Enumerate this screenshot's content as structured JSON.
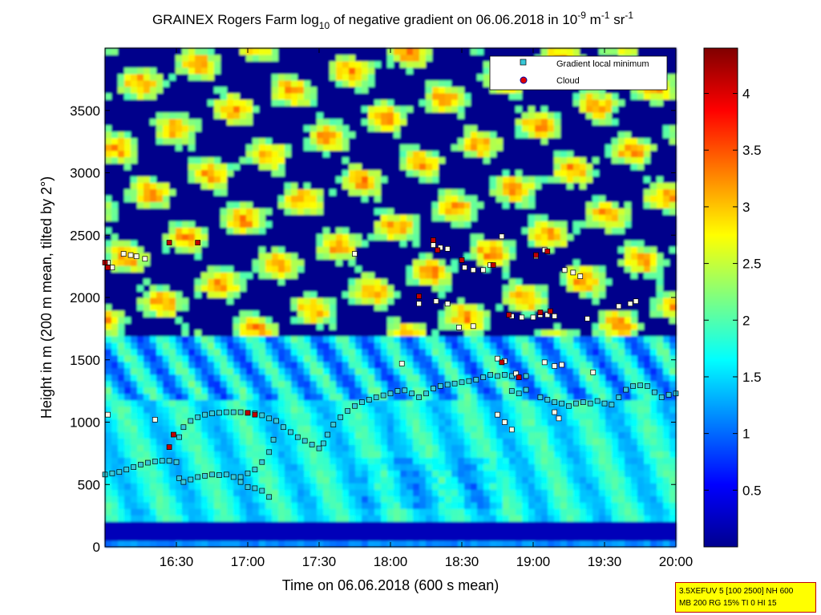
{
  "chart_data": {
    "type": "heatmap",
    "title": {
      "part1": "GRAINEX Rogers Farm log",
      "sub": "10",
      "part2": " of negative gradient on 06.06.2018 in 10",
      "sup1": "-9",
      "part3": " m",
      "sup2": "-1",
      "part4": " sr",
      "sup3": "-1"
    },
    "xlabel": "Time on 06.06.2018 (600 s mean)",
    "ylabel": "Height in m (200 m mean, tilted by 2°)",
    "x_range_hours": [
      16.0,
      20.0
    ],
    "x_ticks": [
      {
        "value": 16.5,
        "label": "16:30"
      },
      {
        "value": 17.0,
        "label": "17:00"
      },
      {
        "value": 17.5,
        "label": "17:30"
      },
      {
        "value": 18.0,
        "label": "18:00"
      },
      {
        "value": 18.5,
        "label": "18:30"
      },
      {
        "value": 19.0,
        "label": "19:00"
      },
      {
        "value": 19.5,
        "label": "19:30"
      },
      {
        "value": 20.0,
        "label": "20:00"
      }
    ],
    "y_range": [
      0,
      4000
    ],
    "y_ticks": [
      {
        "value": 0,
        "label": "0"
      },
      {
        "value": 500,
        "label": "500"
      },
      {
        "value": 1000,
        "label": "1000"
      },
      {
        "value": 1500,
        "label": "1500"
      },
      {
        "value": 2000,
        "label": "2000"
      },
      {
        "value": 2500,
        "label": "2500"
      },
      {
        "value": 3000,
        "label": "3000"
      },
      {
        "value": 3500,
        "label": "3500"
      }
    ],
    "colorbar": {
      "range": [
        0,
        4.4
      ],
      "colormap": "jet",
      "ticks": [
        {
          "value": 0.5,
          "label": "0.5"
        },
        {
          "value": 1,
          "label": "1"
        },
        {
          "value": 1.5,
          "label": "1.5"
        },
        {
          "value": 2,
          "label": "2"
        },
        {
          "value": 2.5,
          "label": "2.5"
        },
        {
          "value": 3,
          "label": "3"
        },
        {
          "value": 3.5,
          "label": "3.5"
        },
        {
          "value": 4,
          "label": "4"
        }
      ]
    },
    "legend": {
      "placement": "top-right",
      "entries": [
        {
          "label": "Gradient local minimum",
          "marker": "square",
          "color": "#38c8d8"
        },
        {
          "label": "Cloud",
          "marker": "circle",
          "color": "#e00000"
        }
      ]
    },
    "boundary_layer_markers": [
      {
        "t": 16.0,
        "h": 580
      },
      {
        "t": 16.05,
        "h": 590
      },
      {
        "t": 16.1,
        "h": 600
      },
      {
        "t": 16.15,
        "h": 620
      },
      {
        "t": 16.2,
        "h": 640
      },
      {
        "t": 16.25,
        "h": 660
      },
      {
        "t": 16.3,
        "h": 675
      },
      {
        "t": 16.35,
        "h": 685
      },
      {
        "t": 16.4,
        "h": 690
      },
      {
        "t": 16.45,
        "h": 690
      },
      {
        "t": 16.5,
        "h": 680
      },
      {
        "t": 16.52,
        "h": 550
      },
      {
        "t": 16.55,
        "h": 520
      },
      {
        "t": 16.6,
        "h": 540
      },
      {
        "t": 16.65,
        "h": 560
      },
      {
        "t": 16.7,
        "h": 570
      },
      {
        "t": 16.75,
        "h": 580
      },
      {
        "t": 16.8,
        "h": 575
      },
      {
        "t": 16.85,
        "h": 580
      },
      {
        "t": 16.9,
        "h": 560
      },
      {
        "t": 16.95,
        "h": 520
      },
      {
        "t": 17.0,
        "h": 480
      },
      {
        "t": 17.05,
        "h": 470
      },
      {
        "t": 17.1,
        "h": 450
      },
      {
        "t": 17.15,
        "h": 400
      },
      {
        "t": 16.95,
        "h": 560
      },
      {
        "t": 17.0,
        "h": 590
      },
      {
        "t": 17.05,
        "h": 620
      },
      {
        "t": 17.1,
        "h": 680
      },
      {
        "t": 17.15,
        "h": 760
      },
      {
        "t": 17.18,
        "h": 860
      },
      {
        "t": 16.52,
        "h": 880
      },
      {
        "t": 16.55,
        "h": 960
      },
      {
        "t": 16.6,
        "h": 1010
      },
      {
        "t": 16.65,
        "h": 1040
      },
      {
        "t": 16.7,
        "h": 1060
      },
      {
        "t": 16.75,
        "h": 1070
      },
      {
        "t": 16.8,
        "h": 1075
      },
      {
        "t": 16.85,
        "h": 1080
      },
      {
        "t": 16.9,
        "h": 1080
      },
      {
        "t": 16.95,
        "h": 1080
      },
      {
        "t": 17.0,
        "h": 1075
      },
      {
        "t": 17.05,
        "h": 1070
      },
      {
        "t": 17.1,
        "h": 1055
      },
      {
        "t": 17.15,
        "h": 1030
      },
      {
        "t": 17.2,
        "h": 1010
      },
      {
        "t": 17.25,
        "h": 960
      },
      {
        "t": 17.3,
        "h": 920
      },
      {
        "t": 17.35,
        "h": 880
      },
      {
        "t": 17.4,
        "h": 850
      },
      {
        "t": 17.45,
        "h": 820
      },
      {
        "t": 17.5,
        "h": 790
      },
      {
        "t": 17.53,
        "h": 830
      },
      {
        "t": 17.56,
        "h": 900
      },
      {
        "t": 17.6,
        "h": 980
      },
      {
        "t": 17.65,
        "h": 1040
      },
      {
        "t": 17.7,
        "h": 1090
      },
      {
        "t": 17.75,
        "h": 1130
      },
      {
        "t": 17.8,
        "h": 1160
      },
      {
        "t": 17.85,
        "h": 1180
      },
      {
        "t": 17.9,
        "h": 1200
      },
      {
        "t": 17.95,
        "h": 1215
      },
      {
        "t": 18.0,
        "h": 1230
      },
      {
        "t": 18.05,
        "h": 1250
      },
      {
        "t": 18.1,
        "h": 1255
      },
      {
        "t": 18.15,
        "h": 1230
      },
      {
        "t": 18.2,
        "h": 1200
      },
      {
        "t": 18.25,
        "h": 1230
      },
      {
        "t": 18.3,
        "h": 1270
      },
      {
        "t": 18.35,
        "h": 1290
      },
      {
        "t": 18.4,
        "h": 1300
      },
      {
        "t": 18.45,
        "h": 1310
      },
      {
        "t": 18.5,
        "h": 1320
      },
      {
        "t": 18.55,
        "h": 1330
      },
      {
        "t": 18.6,
        "h": 1340
      },
      {
        "t": 18.65,
        "h": 1360
      },
      {
        "t": 18.7,
        "h": 1380
      },
      {
        "t": 18.75,
        "h": 1370
      },
      {
        "t": 18.8,
        "h": 1380
      },
      {
        "t": 18.85,
        "h": 1370
      },
      {
        "t": 18.9,
        "h": 1360
      },
      {
        "t": 18.95,
        "h": 1370
      },
      {
        "t": 18.85,
        "h": 1250
      },
      {
        "t": 18.9,
        "h": 1230
      },
      {
        "t": 18.95,
        "h": 1260
      },
      {
        "t": 19.05,
        "h": 1200
      },
      {
        "t": 19.1,
        "h": 1180
      },
      {
        "t": 19.15,
        "h": 1160
      },
      {
        "t": 19.2,
        "h": 1150
      },
      {
        "t": 19.25,
        "h": 1130
      },
      {
        "t": 19.3,
        "h": 1150
      },
      {
        "t": 19.35,
        "h": 1160
      },
      {
        "t": 19.4,
        "h": 1150
      },
      {
        "t": 19.45,
        "h": 1170
      },
      {
        "t": 19.5,
        "h": 1150
      },
      {
        "t": 19.55,
        "h": 1140
      },
      {
        "t": 19.6,
        "h": 1200
      },
      {
        "t": 19.65,
        "h": 1260
      },
      {
        "t": 19.7,
        "h": 1290
      },
      {
        "t": 19.75,
        "h": 1295
      },
      {
        "t": 19.8,
        "h": 1290
      },
      {
        "t": 19.85,
        "h": 1240
      },
      {
        "t": 19.9,
        "h": 1200
      },
      {
        "t": 19.95,
        "h": 1220
      },
      {
        "t": 20.0,
        "h": 1230
      }
    ],
    "upper_markers": [
      {
        "t": 16.02,
        "h": 2280
      },
      {
        "t": 16.05,
        "h": 2240
      },
      {
        "t": 16.13,
        "h": 2350
      },
      {
        "t": 16.18,
        "h": 2340
      },
      {
        "t": 16.22,
        "h": 2330
      },
      {
        "t": 16.28,
        "h": 2310
      },
      {
        "t": 16.35,
        "h": 1020
      },
      {
        "t": 16.02,
        "h": 1060
      },
      {
        "t": 17.75,
        "h": 2350
      },
      {
        "t": 18.08,
        "h": 1470
      },
      {
        "t": 18.2,
        "h": 1950
      },
      {
        "t": 18.3,
        "h": 2420
      },
      {
        "t": 18.35,
        "h": 2400
      },
      {
        "t": 18.4,
        "h": 2390
      },
      {
        "t": 18.32,
        "h": 1970
      },
      {
        "t": 18.4,
        "h": 1950
      },
      {
        "t": 18.48,
        "h": 1760
      },
      {
        "t": 18.52,
        "h": 2240
      },
      {
        "t": 18.58,
        "h": 2220
      },
      {
        "t": 18.65,
        "h": 2220
      },
      {
        "t": 18.7,
        "h": 2260
      },
      {
        "t": 18.78,
        "h": 2490
      },
      {
        "t": 18.85,
        "h": 1850
      },
      {
        "t": 18.92,
        "h": 1840
      },
      {
        "t": 19.0,
        "h": 1840
      },
      {
        "t": 19.05,
        "h": 1860
      },
      {
        "t": 19.1,
        "h": 1860
      },
      {
        "t": 19.15,
        "h": 1850
      },
      {
        "t": 19.02,
        "h": 2330
      },
      {
        "t": 19.08,
        "h": 2380
      },
      {
        "t": 19.15,
        "h": 1450
      },
      {
        "t": 19.2,
        "h": 1460
      },
      {
        "t": 19.22,
        "h": 2220
      },
      {
        "t": 19.28,
        "h": 2200
      },
      {
        "t": 19.33,
        "h": 2170
      },
      {
        "t": 19.38,
        "h": 1830
      },
      {
        "t": 19.42,
        "h": 1400
      },
      {
        "t": 19.6,
        "h": 1930
      },
      {
        "t": 19.68,
        "h": 1950
      },
      {
        "t": 19.72,
        "h": 1970
      },
      {
        "t": 18.75,
        "h": 1510
      },
      {
        "t": 18.8,
        "h": 1490
      },
      {
        "t": 19.08,
        "h": 1480
      },
      {
        "t": 18.75,
        "h": 1060
      },
      {
        "t": 18.8,
        "h": 1000
      },
      {
        "t": 18.85,
        "h": 940
      },
      {
        "t": 19.15,
        "h": 1080
      },
      {
        "t": 19.18,
        "h": 1030
      },
      {
        "t": 18.88,
        "h": 1390
      },
      {
        "t": 18.58,
        "h": 1770
      }
    ],
    "cloud_markers": [
      {
        "t": 16.0,
        "h": 2280
      },
      {
        "t": 16.02,
        "h": 2240
      },
      {
        "t": 16.45,
        "h": 2440
      },
      {
        "t": 16.65,
        "h": 2440
      },
      {
        "t": 16.45,
        "h": 800
      },
      {
        "t": 16.48,
        "h": 900
      },
      {
        "t": 17.0,
        "h": 1075
      },
      {
        "t": 17.05,
        "h": 1060
      },
      {
        "t": 18.2,
        "h": 2010
      },
      {
        "t": 18.3,
        "h": 2460
      },
      {
        "t": 18.33,
        "h": 2380
      },
      {
        "t": 18.5,
        "h": 2300
      },
      {
        "t": 18.72,
        "h": 2260
      },
      {
        "t": 18.9,
        "h": 1360
      },
      {
        "t": 18.78,
        "h": 1480
      },
      {
        "t": 18.83,
        "h": 1860
      },
      {
        "t": 19.02,
        "h": 2340
      },
      {
        "t": 19.05,
        "h": 1880
      },
      {
        "t": 19.12,
        "h": 1890
      },
      {
        "t": 19.1,
        "h": 2370
      }
    ]
  },
  "info_box": {
    "line1": "3.5XEFUV 5 [100 2500] NH 600",
    "line2": "MB 200 RG 15% TI 0 HI 15"
  }
}
